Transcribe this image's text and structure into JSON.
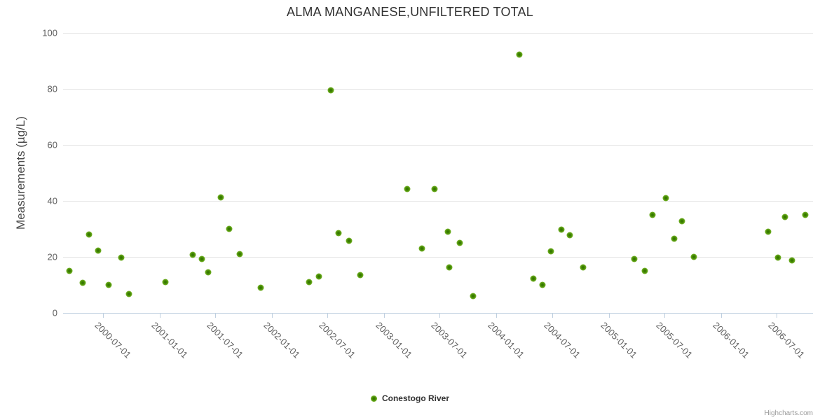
{
  "title": "ALMA MANGANESE,UNFILTERED TOTAL",
  "credits": "Highcharts.com",
  "legend": {
    "series_label": "Conestogo River"
  },
  "chart_data": {
    "type": "scatter",
    "title": "ALMA MANGANESE,UNFILTERED TOTAL",
    "xlabel": "",
    "ylabel": "Measurements (µg/L)",
    "ylim": [
      0,
      100
    ],
    "y_ticks": [
      0,
      20,
      40,
      60,
      80,
      100
    ],
    "x_tick_labels": [
      "2000-07-01",
      "2001-01-01",
      "2001-07-01",
      "2002-01-01",
      "2002-07-01",
      "2003-01-01",
      "2003-07-01",
      "2004-01-01",
      "2004-07-01",
      "2005-01-01",
      "2005-07-01",
      "2006-01-01",
      "2006-07-01"
    ],
    "x_range": [
      "2000-02-22",
      "2006-10-27"
    ],
    "grid": true,
    "legend_position": "bottom-center",
    "colors": {
      "marker_outer": "#7cbb33",
      "marker_inner": "#2f6e00",
      "gridline": "#e6e6e6",
      "axis_line": "#c0d0e0",
      "axis_label": "#606060",
      "title": "#333333",
      "credits": "#999999"
    },
    "series": [
      {
        "name": "Conestogo River",
        "points": [
          {
            "date": "2000-03-14",
            "value": 15
          },
          {
            "date": "2000-04-26",
            "value": 10.7
          },
          {
            "date": "2000-05-17",
            "value": 28
          },
          {
            "date": "2000-06-15",
            "value": 22.2
          },
          {
            "date": "2000-07-19",
            "value": 10
          },
          {
            "date": "2000-08-29",
            "value": 19.7
          },
          {
            "date": "2000-09-24",
            "value": 6.7
          },
          {
            "date": "2001-01-21",
            "value": 11
          },
          {
            "date": "2001-04-19",
            "value": 20.7
          },
          {
            "date": "2001-05-19",
            "value": 19.2
          },
          {
            "date": "2001-06-09",
            "value": 14.5
          },
          {
            "date": "2001-07-19",
            "value": 41.2
          },
          {
            "date": "2001-08-16",
            "value": 30
          },
          {
            "date": "2001-09-19",
            "value": 21
          },
          {
            "date": "2001-11-25",
            "value": 9
          },
          {
            "date": "2002-05-02",
            "value": 11
          },
          {
            "date": "2002-06-03",
            "value": 13
          },
          {
            "date": "2002-07-12",
            "value": 79.5
          },
          {
            "date": "2002-08-06",
            "value": 28.5
          },
          {
            "date": "2002-09-10",
            "value": 25.7
          },
          {
            "date": "2002-10-16",
            "value": 13.5
          },
          {
            "date": "2003-03-17",
            "value": 44.2
          },
          {
            "date": "2003-05-04",
            "value": 23
          },
          {
            "date": "2003-06-15",
            "value": 44.2
          },
          {
            "date": "2003-07-28",
            "value": 29
          },
          {
            "date": "2003-08-01",
            "value": 16.2
          },
          {
            "date": "2003-09-05",
            "value": 25
          },
          {
            "date": "2003-10-18",
            "value": 6
          },
          {
            "date": "2004-03-17",
            "value": 92.2
          },
          {
            "date": "2004-05-02",
            "value": 12.2
          },
          {
            "date": "2004-05-30",
            "value": 10
          },
          {
            "date": "2004-06-26",
            "value": 22
          },
          {
            "date": "2004-07-31",
            "value": 29.7
          },
          {
            "date": "2004-08-28",
            "value": 27.7
          },
          {
            "date": "2004-10-10",
            "value": 16.2
          },
          {
            "date": "2005-03-26",
            "value": 19.2
          },
          {
            "date": "2005-04-29",
            "value": 15
          },
          {
            "date": "2005-05-24",
            "value": 35
          },
          {
            "date": "2005-07-05",
            "value": 41
          },
          {
            "date": "2005-08-03",
            "value": 26.5
          },
          {
            "date": "2005-08-28",
            "value": 32.7
          },
          {
            "date": "2005-10-06",
            "value": 20
          },
          {
            "date": "2006-06-03",
            "value": 29
          },
          {
            "date": "2006-07-05",
            "value": 19.7
          },
          {
            "date": "2006-07-28",
            "value": 34.2
          },
          {
            "date": "2006-08-20",
            "value": 18.7
          },
          {
            "date": "2006-10-03",
            "value": 35
          }
        ]
      }
    ]
  }
}
